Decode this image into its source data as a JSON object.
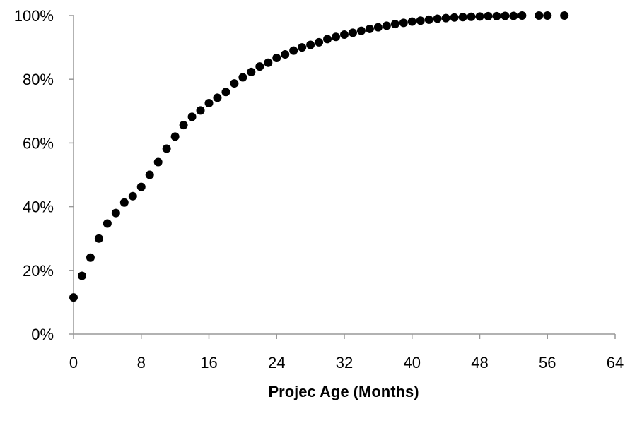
{
  "chart_data": {
    "type": "scatter",
    "title": "",
    "xlabel": "Projec Age (Months)",
    "ylabel": "",
    "xlim": [
      0,
      64
    ],
    "ylim": [
      0,
      100
    ],
    "x_ticks": [
      0,
      8,
      16,
      24,
      32,
      40,
      48,
      56,
      64
    ],
    "y_ticks": [
      0,
      20,
      40,
      60,
      80,
      100
    ],
    "x_tick_labels": [
      "0",
      "8",
      "16",
      "24",
      "32",
      "40",
      "48",
      "56",
      "64"
    ],
    "y_tick_labels": [
      "0%",
      "20%",
      "40%",
      "60%",
      "80%",
      "100%"
    ],
    "grid": false,
    "legend": "none",
    "marker_color": "#000000",
    "axis_color": "#999999",
    "x": [
      0,
      1,
      2,
      3,
      4,
      5,
      6,
      7,
      8,
      9,
      10,
      11,
      12,
      13,
      14,
      15,
      16,
      17,
      18,
      19,
      20,
      21,
      22,
      23,
      24,
      25,
      26,
      27,
      28,
      29,
      30,
      31,
      32,
      33,
      34,
      35,
      36,
      37,
      38,
      39,
      40,
      41,
      42,
      43,
      44,
      45,
      46,
      47,
      48,
      49,
      50,
      51,
      52,
      53,
      55,
      56,
      58
    ],
    "y": [
      11.5,
      18.3,
      24.0,
      30.0,
      34.7,
      38.0,
      41.3,
      43.3,
      46.2,
      50.0,
      54.0,
      58.2,
      62.0,
      65.6,
      68.2,
      70.2,
      72.5,
      74.2,
      76.0,
      78.7,
      80.6,
      82.3,
      84.0,
      85.2,
      86.7,
      87.8,
      89.0,
      90.0,
      90.8,
      91.6,
      92.6,
      93.3,
      94.0,
      94.6,
      95.2,
      95.8,
      96.3,
      96.8,
      97.3,
      97.7,
      98.1,
      98.4,
      98.7,
      99.0,
      99.2,
      99.4,
      99.5,
      99.6,
      99.7,
      99.8,
      99.8,
      99.9,
      99.9,
      100.0,
      100.0,
      100.0,
      100.0
    ]
  }
}
